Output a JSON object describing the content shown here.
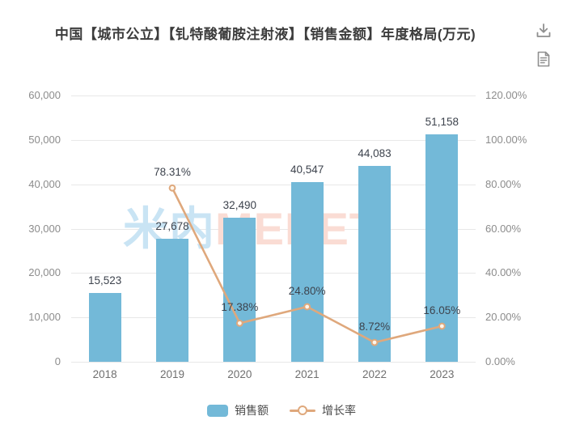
{
  "header": {
    "title": "中国【城市公立】【钆特酸葡胺注射液】【销售金额】年度格局(万元)",
    "icons": [
      {
        "name": "download-icon"
      },
      {
        "name": "report-icon"
      }
    ]
  },
  "watermark": {
    "part_cn": "米内",
    "part_en": "MENET"
  },
  "legend": {
    "sales_label": "销售额",
    "growth_label": "增长率"
  },
  "colors": {
    "bar": "#73b9d8",
    "line": "#dfa87c",
    "marker_fill": "#fdf6ec",
    "grid": "#e8e8e8",
    "axis_text": "#8c8c8c",
    "data_label": "#3d434d",
    "title_text": "#3c3c3c",
    "watermark_cn": "#c9e4f4",
    "watermark_en": "#fadcd4"
  },
  "chart_data": {
    "type": "bar",
    "title": "中国【城市公立】【钆特酸葡胺注射液】【销售金额】年度格局(万元)",
    "categories": [
      "2018",
      "2019",
      "2020",
      "2021",
      "2022",
      "2023"
    ],
    "series": [
      {
        "name": "销售额",
        "type": "bar",
        "axis": "left",
        "values": [
          15523,
          27678,
          32490,
          40547,
          44083,
          51158
        ],
        "labels": [
          "15,523",
          "27,678",
          "32,490",
          "40,547",
          "44,083",
          "51,158"
        ]
      },
      {
        "name": "增长率",
        "type": "line",
        "axis": "right",
        "values": [
          null,
          0.7831,
          0.1738,
          0.248,
          0.0872,
          0.1605
        ],
        "labels": [
          "",
          "78.31%",
          "17.38%",
          "24.80%",
          "8.72%",
          "16.05%"
        ]
      }
    ],
    "left_axis": {
      "min": 0,
      "max": 60000,
      "ticks": [
        "0",
        "10,000",
        "20,000",
        "30,000",
        "40,000",
        "50,000",
        "60,000"
      ]
    },
    "right_axis": {
      "min": 0,
      "max": 1.2,
      "ticks": [
        "0.00%",
        "20.00%",
        "40.00%",
        "60.00%",
        "80.00%",
        "100.00%",
        "120.00%"
      ]
    },
    "grid": true,
    "legend_position": "bottom"
  }
}
